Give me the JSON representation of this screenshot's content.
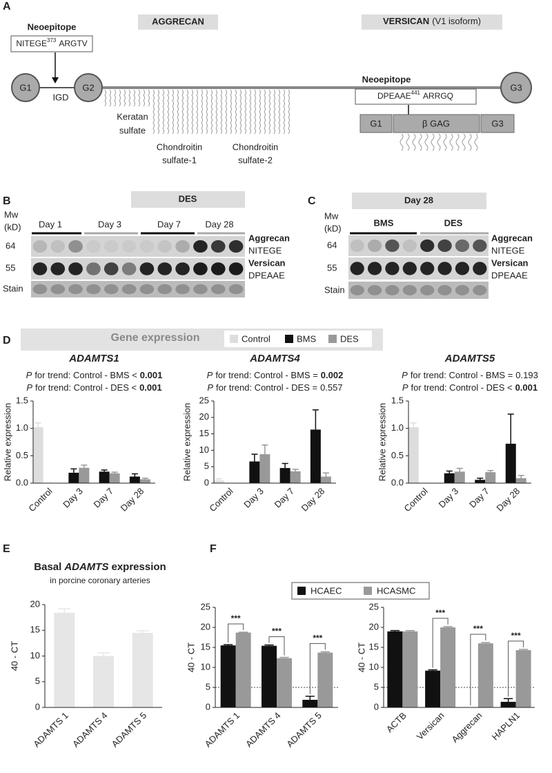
{
  "panel_a": {
    "letter": "A",
    "aggrecan": "AGGRECAN",
    "versican": "VERSICAN",
    "versican_isoform": "(V1 isoform)",
    "aggrecan_neoepitope": {
      "title": "Neoepitope",
      "before": "NITEGE",
      "sup": 373,
      "after": "ARGTV"
    },
    "aggrecan_domains": [
      "G1",
      "G2",
      "G3"
    ],
    "igd": "IGD",
    "keratan": [
      "Keratan",
      "sulfate"
    ],
    "cs1": [
      "Chondroitin",
      "sulfate-1"
    ],
    "cs2": [
      "Chondroitin",
      "sulfate-2"
    ],
    "versican_neoepitope": {
      "title": "Neoepitope",
      "before": "DPEAAE",
      "sup": 441,
      "after": "ARRGQ"
    },
    "versican_domains": [
      "G1",
      "β GAG",
      "G3"
    ]
  },
  "panel_b": {
    "letter": "B",
    "header": "DES",
    "mw": [
      "Mw",
      "(kD)"
    ],
    "days": [
      "Day 1",
      "Day 3",
      "Day 7",
      "Day 28"
    ],
    "markers": [
      64,
      55
    ],
    "stain": "Stain",
    "labels": [
      [
        "Aggrecan",
        "NITEGE"
      ],
      [
        "Versican",
        "DPEAAE"
      ]
    ]
  },
  "panel_c": {
    "letter": "C",
    "header": "Day 28",
    "mw": [
      "Mw",
      "(kD)"
    ],
    "groups": [
      "BMS",
      "DES"
    ],
    "markers": [
      64,
      55
    ],
    "stain": "Stain",
    "labels": [
      [
        "Aggrecan",
        "NITEGE"
      ],
      [
        "Versican",
        "DPEAAE"
      ]
    ]
  },
  "panel_d": {
    "letter": "D",
    "header": "Gene expression"
  },
  "panel_e": {
    "letter": "E"
  },
  "panel_f": {
    "letter": "F"
  },
  "chart_data": [
    {
      "type": "bar",
      "title": "ADAMTS1",
      "y_label": "Relative expression",
      "trend_tests": [
        {
          "symbol": "P",
          "text": "for trend: Control - BMS <",
          "p": 0.001,
          "significant": true
        },
        {
          "symbol": "P",
          "text": "for trend: Control - DES <",
          "p": 0.001,
          "significant": true
        }
      ],
      "categories": [
        "Control",
        "Day 3",
        "Day 7",
        "Day 28"
      ],
      "series": [
        {
          "name": "Control",
          "color": "#dddddd",
          "values": [
            1.02,
            null,
            null,
            null
          ],
          "errors": [
            0.08,
            null,
            null,
            null
          ]
        },
        {
          "name": "BMS",
          "color": "#111111",
          "values": [
            null,
            0.19,
            0.21,
            0.12
          ],
          "errors": [
            null,
            0.07,
            0.03,
            0.05
          ]
        },
        {
          "name": "DES",
          "color": "#999999",
          "values": [
            null,
            0.28,
            0.18,
            0.07
          ],
          "errors": [
            null,
            0.05,
            0.02,
            0.02
          ]
        }
      ],
      "ylim": [
        0,
        1.5
      ],
      "yticks": [
        {
          "value": 0,
          "label": "0.0"
        },
        0.5,
        {
          "value": 1,
          "label": "1.0"
        },
        1.5
      ]
    },
    {
      "type": "bar",
      "title": "ADAMTS4",
      "y_label": "Relative expression",
      "trend_tests": [
        {
          "symbol": "P",
          "text": "for trend: Control - BMS =",
          "p": 0.002,
          "significant": true
        },
        {
          "symbol": "P",
          "text": "for trend: Control - DES =",
          "p": 0.557,
          "significant": false
        }
      ],
      "categories": [
        "Control",
        "Day 3",
        "Day 7",
        "Day 28"
      ],
      "series": [
        {
          "name": "Control",
          "color": "#dddddd",
          "values": [
            0.8,
            null,
            null,
            null
          ],
          "errors": [
            0.5,
            null,
            null,
            null
          ]
        },
        {
          "name": "BMS",
          "color": "#111111",
          "values": [
            null,
            6.6,
            4.6,
            16.3
          ],
          "errors": [
            null,
            2.2,
            1.4,
            6.0
          ]
        },
        {
          "name": "DES",
          "color": "#999999",
          "values": [
            null,
            8.8,
            3.6,
            2.0
          ],
          "errors": [
            null,
            2.8,
            0.6,
            1.1
          ]
        }
      ],
      "ylim": [
        0,
        25
      ],
      "yticks": [
        0,
        5,
        10,
        15,
        20,
        25
      ]
    },
    {
      "type": "bar",
      "title": "ADAMTS5",
      "y_label": "Relative expression",
      "trend_tests": [
        {
          "symbol": "P",
          "text": "for trend: Control - BMS =",
          "p": 0.193,
          "significant": false
        },
        {
          "symbol": "P",
          "text": "for trend: Control - DES <",
          "p": 0.001,
          "significant": true
        }
      ],
      "categories": [
        "Control",
        "Day 3",
        "Day 7",
        "Day 28"
      ],
      "series": [
        {
          "name": "Control",
          "color": "#dddddd",
          "values": [
            1.02,
            null,
            null,
            null
          ],
          "errors": [
            0.08,
            null,
            null,
            null
          ]
        },
        {
          "name": "BMS",
          "color": "#111111",
          "values": [
            null,
            0.18,
            0.06,
            0.72
          ],
          "errors": [
            null,
            0.04,
            0.03,
            0.54
          ]
        },
        {
          "name": "DES",
          "color": "#999999",
          "values": [
            null,
            0.21,
            0.2,
            0.09
          ],
          "errors": [
            null,
            0.06,
            0.03,
            0.05
          ]
        }
      ],
      "ylim": [
        0,
        1.5
      ],
      "yticks": [
        {
          "value": 0,
          "label": "0.0"
        },
        0.5,
        {
          "value": 1,
          "label": "1.0"
        },
        1.5
      ]
    },
    {
      "type": "bar",
      "title_parts": [
        "Basal",
        "ADAMTS",
        "expression"
      ],
      "subtitle": "in porcine coronary arteries",
      "y_label": "40 - CT",
      "categories": [
        "ADAMTS 1",
        "ADAMTS 4",
        "ADAMTS 5"
      ],
      "series": [
        {
          "color": "#e6e6e6",
          "values": [
            18.4,
            10.0,
            14.5
          ],
          "errors": [
            0.8,
            0.6,
            0.4
          ]
        }
      ],
      "ylim": [
        0,
        20
      ],
      "yticks": [
        0,
        5,
        10,
        15,
        20
      ]
    },
    {
      "type": "bar",
      "y_label": "40 - CT",
      "categories": [
        "ADAMTS 1",
        "ADAMTS 4",
        "ADAMTS 5"
      ],
      "series": [
        {
          "name": "HCAEC",
          "color": "#111111",
          "values": [
            15.5,
            15.4,
            1.9
          ],
          "errors": [
            0.2,
            0.2,
            0.9
          ]
        },
        {
          "name": "HCASMC",
          "color": "#999999",
          "values": [
            18.7,
            12.3,
            13.7
          ],
          "errors": [
            0.1,
            0.2,
            0.2
          ]
        }
      ],
      "significance": [
        "***",
        "***",
        "***"
      ],
      "reference_line": 5,
      "ylim": [
        0,
        25
      ],
      "yticks": [
        0,
        5,
        10,
        15,
        20,
        25
      ]
    },
    {
      "type": "bar",
      "y_label": "40 - CT",
      "categories": [
        "ACTB",
        "Versican",
        "Aggrecan",
        "HAPLN1"
      ],
      "series": [
        {
          "name": "HCAEC",
          "color": "#111111",
          "values": [
            19.0,
            9.2,
            null,
            1.4
          ],
          "errors": [
            0.2,
            0.2,
            null,
            0.8
          ]
        },
        {
          "name": "HCASMC",
          "color": "#999999",
          "values": [
            19.0,
            20.0,
            16.0,
            14.3
          ],
          "errors": [
            0.2,
            0.2,
            0.2,
            0.2
          ]
        }
      ],
      "significance": [
        null,
        "***",
        "***",
        "***"
      ],
      "reference_line": 5,
      "ylim": [
        0,
        25
      ],
      "yticks": [
        0,
        5,
        10,
        15,
        20,
        25
      ]
    }
  ]
}
